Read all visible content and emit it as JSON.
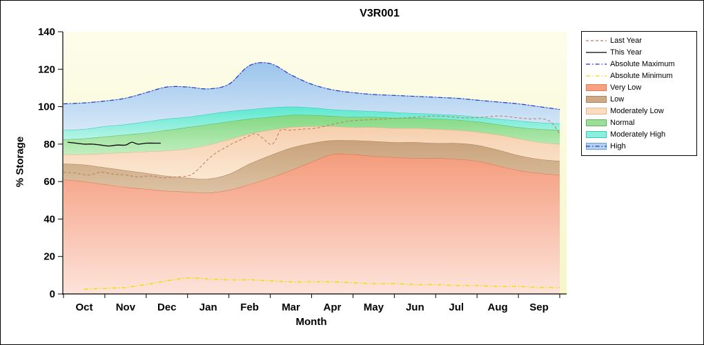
{
  "chart_data": {
    "type": "area",
    "title": "V3R001",
    "xlabel": "Month",
    "ylabel": "% Storage",
    "ylim": [
      0,
      140
    ],
    "yticks": [
      0,
      20,
      40,
      60,
      80,
      100,
      120,
      140
    ],
    "month_labels": [
      "Oct",
      "Nov",
      "Dec",
      "Jan",
      "Feb",
      "Mar",
      "Apr",
      "May",
      "Jun",
      "Jul",
      "Aug",
      "Sep"
    ],
    "plot_bg_top": "#fdfdeb",
    "plot_bg_bottom": "#f6f6c8",
    "band_x": [
      0,
      0.5,
      1,
      1.5,
      2,
      2.5,
      3,
      3.5,
      4,
      4.5,
      5,
      5.5,
      6,
      6.5,
      7,
      7.5,
      8,
      8.5,
      9,
      9.5,
      10,
      10.5,
      11,
      11.5,
      12
    ],
    "bands": [
      {
        "name": "Very Low",
        "fill_top": "#f49c7c",
        "fill_bottom": "#fde3da",
        "edge": "#dd6f4a",
        "upper": [
          61,
          60,
          58.5,
          57,
          56,
          55,
          54.5,
          54,
          55.5,
          58.5,
          62,
          66,
          70.5,
          74.5,
          74.5,
          73.5,
          73,
          72.5,
          72.5,
          72,
          71,
          68.5,
          66,
          64.5,
          63.5
        ]
      },
      {
        "name": "Low",
        "fill_top": "#c9a27b",
        "fill_bottom": "#dcc3a4",
        "edge": "#a87f55",
        "upper": [
          69.5,
          69,
          67.5,
          66,
          64.5,
          63,
          62,
          61.5,
          64,
          69.5,
          74,
          78,
          80.5,
          82,
          82,
          81.5,
          81,
          81,
          80.5,
          80.5,
          79.5,
          77,
          74,
          72,
          71
        ]
      },
      {
        "name": "Moderately Low",
        "fill_top": "#f6cfae",
        "fill_bottom": "#fbe8d2",
        "edge": "#e2b183",
        "upper": [
          74.5,
          74.5,
          75,
          75.5,
          76,
          76.5,
          77.5,
          79.5,
          82.5,
          85.5,
          87.5,
          89,
          89.5,
          89.5,
          89,
          89,
          88.5,
          88.5,
          88,
          87.5,
          86.5,
          85,
          83,
          81,
          80
        ]
      },
      {
        "name": "Normal",
        "fill_top": "#82d882",
        "fill_bottom": "#c2eec0",
        "edge": "#54b854",
        "upper": [
          82.5,
          83,
          84,
          85,
          86,
          87.5,
          89,
          90.5,
          92,
          93.5,
          94.5,
          95.5,
          95.5,
          95,
          94.5,
          94.5,
          94,
          94,
          93.5,
          93,
          92,
          90.5,
          89,
          88,
          87.5
        ]
      },
      {
        "name": "Moderately High",
        "fill_top": "#5ce8d0",
        "fill_bottom": "#b8f4e8",
        "edge": "#2fc4ae",
        "upper": [
          87.5,
          88,
          89.5,
          90.5,
          92,
          93.5,
          94.5,
          96,
          97.5,
          98.5,
          99.5,
          100,
          99.5,
          98.5,
          98,
          97.5,
          97,
          96.5,
          96,
          95.5,
          94.5,
          93.5,
          92.5,
          91.5,
          91
        ]
      },
      {
        "name": "High",
        "fill_top": "#9cc4ec",
        "fill_bottom": "#d6e8f8",
        "edge": "#86aede",
        "upper": [
          101.5,
          102,
          103,
          104.5,
          107.5,
          110.5,
          110.5,
          109.5,
          112,
          122,
          123,
          117,
          112,
          109,
          107.5,
          106.5,
          106,
          105.5,
          105,
          104.5,
          103.5,
          102.5,
          101.5,
          100,
          98.5
        ]
      }
    ],
    "lines": [
      {
        "name": "Absolute Minimum",
        "color": "#ece000",
        "dash": "6 3 1.5 3",
        "width": 1.5,
        "x": [
          0.5,
          1,
          1.5,
          2,
          2.5,
          3,
          3.5,
          4,
          4.5,
          5,
          5.5,
          6,
          6.5,
          7,
          7.5,
          8,
          8.5,
          9,
          9.5,
          10,
          10.5,
          11,
          11.5,
          12
        ],
        "y": [
          2.5,
          3,
          3.5,
          5,
          7,
          8.5,
          8,
          7.5,
          7.5,
          7,
          6.5,
          6.5,
          6.5,
          6,
          5.5,
          5.5,
          5,
          5,
          4.5,
          4.5,
          4,
          4,
          3.5,
          3.5
        ]
      },
      {
        "name": "Last Year",
        "color": "#c0785a",
        "dash": "4 3",
        "width": 1,
        "x": [
          0,
          0.3,
          0.6,
          0.9,
          1.2,
          1.5,
          1.8,
          2.1,
          2.4,
          2.7,
          3.0,
          3.15,
          3.3,
          3.5,
          3.7,
          3.9,
          4.1,
          4.3,
          4.5,
          4.65,
          4.8,
          4.95,
          5.05,
          5.15,
          5.25,
          5.5,
          5.8,
          6.1,
          6.4,
          6.7,
          7.0,
          7.4,
          7.8,
          8.2,
          8.6,
          9.0,
          9.4,
          9.8,
          10.2,
          10.6,
          11.0,
          11.3,
          11.6,
          11.8,
          12
        ],
        "y": [
          65,
          64.5,
          63.5,
          65,
          64,
          63.5,
          62.5,
          63,
          62,
          62.5,
          63,
          64.5,
          67.5,
          72,
          75.5,
          78,
          80.5,
          82.5,
          84.5,
          85.5,
          83.5,
          80.5,
          80,
          83,
          87.5,
          87.5,
          88,
          88.5,
          90,
          91.5,
          92.5,
          93,
          93.5,
          94,
          94.5,
          95,
          94.5,
          94,
          94.5,
          95,
          94,
          93.5,
          93.5,
          91.5,
          85.5
        ]
      },
      {
        "name": "Absolute Maximum",
        "color": "#2233cc",
        "dash": "6 3 1.5 3",
        "width": 1.2,
        "x": [
          0,
          0.5,
          1,
          1.5,
          2,
          2.5,
          3,
          3.5,
          4,
          4.5,
          5,
          5.5,
          6,
          6.5,
          7,
          7.5,
          8,
          8.5,
          9,
          9.5,
          10,
          10.5,
          11,
          11.5,
          12
        ],
        "y": [
          101.5,
          102,
          103,
          104.5,
          107.5,
          110.5,
          110.5,
          109.5,
          112,
          122,
          123,
          117,
          112,
          109,
          107.5,
          106.5,
          106,
          105.5,
          105,
          104.5,
          103.5,
          102.5,
          101.5,
          100,
          98.5
        ]
      },
      {
        "name": "This Year",
        "color": "#000000",
        "dash": "",
        "width": 1.3,
        "x": [
          0.1,
          0.3,
          0.5,
          0.7,
          0.9,
          1.1,
          1.3,
          1.5,
          1.65,
          1.8,
          2.0,
          2.2,
          2.35
        ],
        "y": [
          81,
          80.5,
          80,
          80,
          79.5,
          79,
          79.5,
          79.5,
          81,
          80,
          80.5,
          80.5,
          80.5
        ]
      }
    ],
    "legend": {
      "items": [
        {
          "label": "Last Year",
          "kind": "line",
          "color": "#c0785a",
          "dash": "4 3"
        },
        {
          "label": "This Year",
          "kind": "line",
          "color": "#000000",
          "dash": ""
        },
        {
          "label": "Absolute Maximum",
          "kind": "line",
          "color": "#2233cc",
          "dash": "6 3 1.5 3"
        },
        {
          "label": "Absolute Minimum",
          "kind": "line",
          "color": "#ece000",
          "dash": "6 3 1.5 3"
        },
        {
          "label": "Very Low",
          "kind": "fill",
          "fill": "#f7a182",
          "stroke": "#e07b54"
        },
        {
          "label": "Low",
          "kind": "fill",
          "fill": "#cfa986",
          "stroke": "#aa8560"
        },
        {
          "label": "Moderately Low",
          "kind": "fill",
          "fill": "#fbdcc0",
          "stroke": "#e5b98e"
        },
        {
          "label": "Normal",
          "kind": "fill",
          "fill": "#9ade9a",
          "stroke": "#5cb85c"
        },
        {
          "label": "Moderately High",
          "kind": "fill",
          "fill": "#8ceedd",
          "stroke": "#3cc8b4"
        },
        {
          "label": "High",
          "kind": "fill-line",
          "fill": "#b4d2f0",
          "stroke": "#6a9fd8",
          "color": "#2233cc",
          "dash": "6 3 1.5 3"
        }
      ]
    }
  }
}
